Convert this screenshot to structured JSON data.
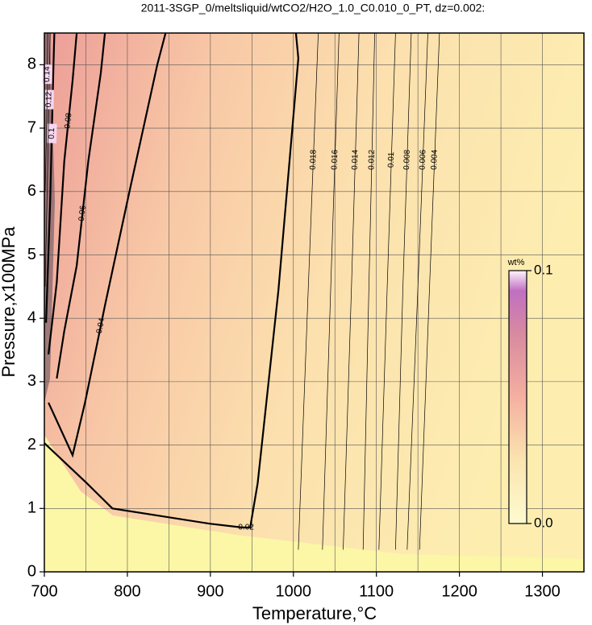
{
  "chart_data": {
    "type": "contour",
    "title": "2011-3SGP_0/meltsliquid/wtCO2/H2O_1.0_C0.010_0_PT, dz=0.002:",
    "xlabel": "Temperature,°C",
    "ylabel": "Pressure,x100MPa",
    "xlim": [
      700,
      1350
    ],
    "ylim": [
      0,
      8.5
    ],
    "xticks": [
      700,
      800,
      900,
      1000,
      1100,
      1200,
      1300
    ],
    "yticks": [
      0,
      1,
      2,
      3,
      4,
      5,
      6,
      7,
      8
    ],
    "xgrid": [
      700,
      750,
      800,
      850,
      900,
      950,
      1000,
      1050,
      1100,
      1150,
      1200,
      1250,
      1300
    ],
    "grid": true,
    "colorbar": {
      "label": "wt%",
      "lim": [
        0,
        0.1
      ],
      "ticks": [
        {
          "value": 0,
          "label": "0.0"
        },
        0.1
      ]
    },
    "contours": [
      {
        "level": 0.02,
        "bold": true,
        "x": [
          700,
          751,
          782,
          899,
          938,
          948,
          957,
          982,
          1006,
          1003
        ],
        "y": [
          2.03,
          1.4,
          1.0,
          0.76,
          0.7,
          0.7,
          1.4,
          4.44,
          8.1,
          8.5
        ]
      },
      {
        "level": 0.04,
        "bold": true,
        "x": [
          705,
          734,
          749,
          763,
          773,
          802,
          836,
          846
        ],
        "y": [
          2.67,
          1.84,
          2.67,
          3.56,
          4.2,
          5.97,
          8.0,
          8.5
        ]
      },
      {
        "level": 0.06,
        "bold": true,
        "x": [
          715,
          724,
          739,
          753,
          768,
          773
        ],
        "y": [
          3.05,
          3.8,
          4.83,
          6.48,
          7.87,
          8.5
        ]
      },
      {
        "level": 0.08,
        "bold": true,
        "x": [
          705,
          715,
          724,
          734,
          739
        ],
        "y": [
          3.43,
          4.57,
          6.48,
          7.75,
          8.5
        ]
      },
      {
        "level": 0.1,
        "bold": true,
        "x": [
          702,
          707,
          711,
          712
        ],
        "y": [
          3.93,
          5.84,
          7.99,
          8.5
        ]
      },
      {
        "level": 0.12,
        "bold": false,
        "x": [
          701,
          704,
          707
        ],
        "y": [
          4.5,
          6.4,
          8.5
        ]
      },
      {
        "level": 0.14,
        "bold": false,
        "x": [
          701,
          703,
          704
        ],
        "y": [
          6.0,
          7.2,
          8.5
        ]
      },
      {
        "level": 0.018,
        "bold": false,
        "x": [
          1006,
          1018,
          1030
        ],
        "y": [
          0.35,
          4.5,
          8.5
        ]
      },
      {
        "level": 0.016,
        "bold": false,
        "x": [
          1035,
          1045,
          1055
        ],
        "y": [
          0.35,
          4.5,
          8.5
        ]
      },
      {
        "level": 0.014,
        "bold": false,
        "x": [
          1060,
          1070,
          1079
        ],
        "y": [
          0.35,
          4.5,
          8.5
        ]
      },
      {
        "level": 0.012,
        "bold": false,
        "x": [
          1084,
          1091,
          1098
        ],
        "y": [
          0.35,
          4.5,
          8.5
        ]
      },
      {
        "level": 0.01,
        "bold": false,
        "x": [
          1103,
          1113,
          1123
        ],
        "y": [
          0.35,
          4.5,
          8.5
        ]
      },
      {
        "level": 0.008,
        "bold": false,
        "x": [
          1123,
          1132,
          1142
        ],
        "y": [
          0.35,
          4.5,
          8.5
        ]
      },
      {
        "level": 0.006,
        "bold": false,
        "x": [
          1137,
          1150,
          1162
        ],
        "y": [
          0.35,
          4.5,
          8.5
        ]
      },
      {
        "level": 0.004,
        "bold": false,
        "x": [
          1152,
          1164,
          1176
        ],
        "y": [
          0.35,
          4.5,
          8.5
        ]
      }
    ]
  }
}
